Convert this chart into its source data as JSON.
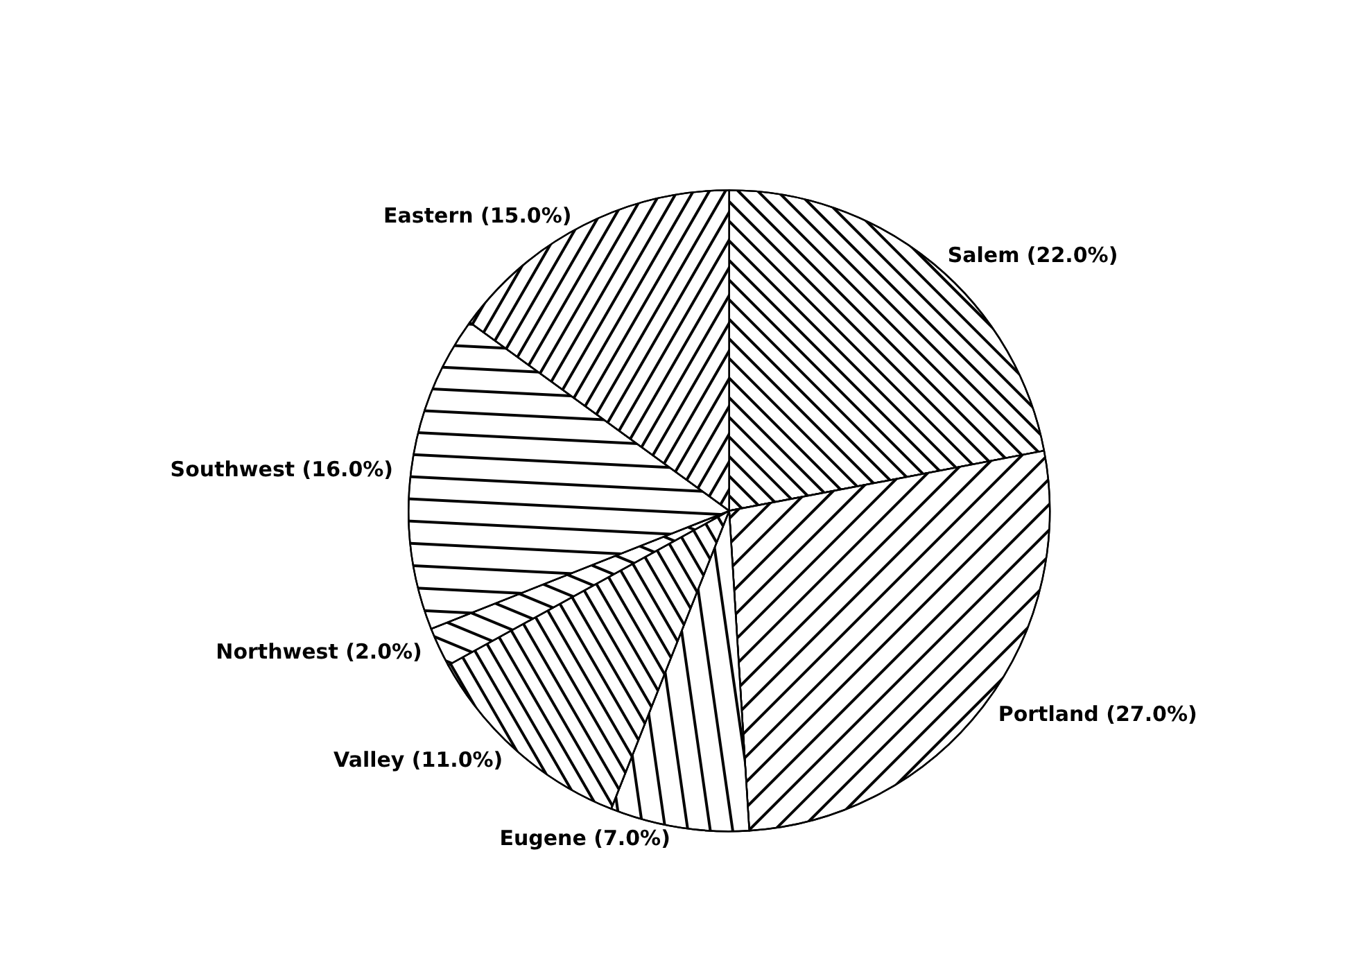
{
  "chart_data": {
    "type": "pie",
    "categories": [
      "Salem",
      "Portland",
      "Eugene",
      "Valley",
      "Northwest",
      "Southwest",
      "Eastern"
    ],
    "values": [
      22,
      27,
      7,
      11,
      2,
      16,
      15
    ],
    "value_labels": [
      "(22.0%)",
      "(27.0%)",
      "(7.0%)",
      "(11.0%)",
      "(2.0%)",
      "(16.0%)",
      "(15.0%)"
    ],
    "colors": [
      "#ffffff",
      "#ffffff",
      "#ffffff",
      "#ffffff",
      "#ffffff",
      "#ffffff",
      "#ffffff"
    ]
  }
}
